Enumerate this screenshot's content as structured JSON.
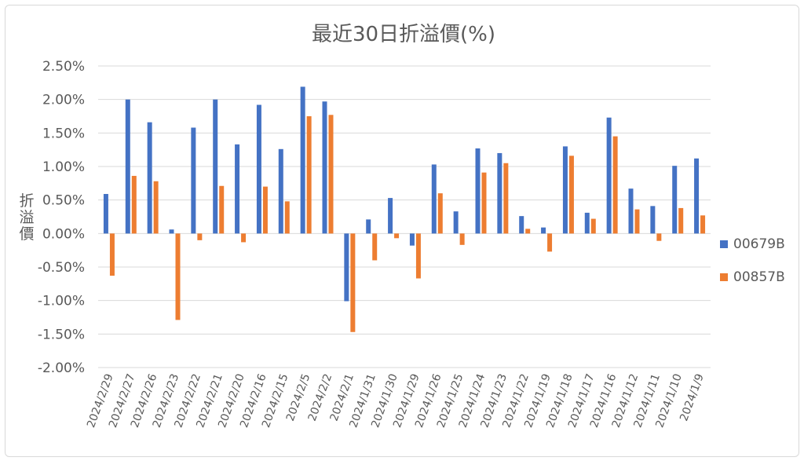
{
  "chart_data": {
    "type": "bar",
    "title": "最近30日折溢價(%)",
    "ylabel": "折溢價",
    "xlabel": "",
    "ylim": [
      -2.0,
      2.5
    ],
    "y_ticks": [
      "2.50%",
      "2.00%",
      "1.50%",
      "1.00%",
      "0.50%",
      "0.00%",
      "-0.50%",
      "-1.00%",
      "-1.50%",
      "-2.00%"
    ],
    "grid": true,
    "legend_position": "right",
    "categories": [
      "2024/2/29",
      "2024/2/27",
      "2024/2/26",
      "2024/2/23",
      "2024/2/22",
      "2024/2/21",
      "2024/2/20",
      "2024/2/16",
      "2024/2/15",
      "2024/2/5",
      "2024/2/2",
      "2024/2/1",
      "2024/1/31",
      "2024/1/30",
      "2024/1/29",
      "2024/1/26",
      "2024/1/25",
      "2024/1/24",
      "2024/1/23",
      "2024/1/22",
      "2024/1/19",
      "2024/1/18",
      "2024/1/17",
      "2024/1/16",
      "2024/1/12",
      "2024/1/11",
      "2024/1/10",
      "2024/1/9"
    ],
    "series": [
      {
        "name": "00679B",
        "color": "#4472c4",
        "values": [
          0.59,
          2.0,
          1.66,
          0.06,
          1.58,
          2.0,
          1.33,
          1.92,
          1.26,
          2.19,
          1.97,
          -1.01,
          0.21,
          0.53,
          -0.18,
          1.03,
          0.33,
          1.27,
          1.2,
          0.26,
          0.09,
          1.3,
          0.31,
          1.73,
          0.67,
          0.41,
          1.01,
          1.12
        ]
      },
      {
        "name": "00857B",
        "color": "#ed7d31",
        "values": [
          -0.63,
          0.86,
          0.78,
          -1.29,
          -0.1,
          0.71,
          -0.13,
          0.7,
          0.48,
          1.75,
          1.77,
          -1.47,
          -0.4,
          -0.07,
          -0.67,
          0.6,
          -0.17,
          0.91,
          1.05,
          0.07,
          -0.27,
          1.16,
          0.22,
          1.45,
          0.36,
          -0.11,
          0.38,
          0.27
        ]
      }
    ]
  }
}
